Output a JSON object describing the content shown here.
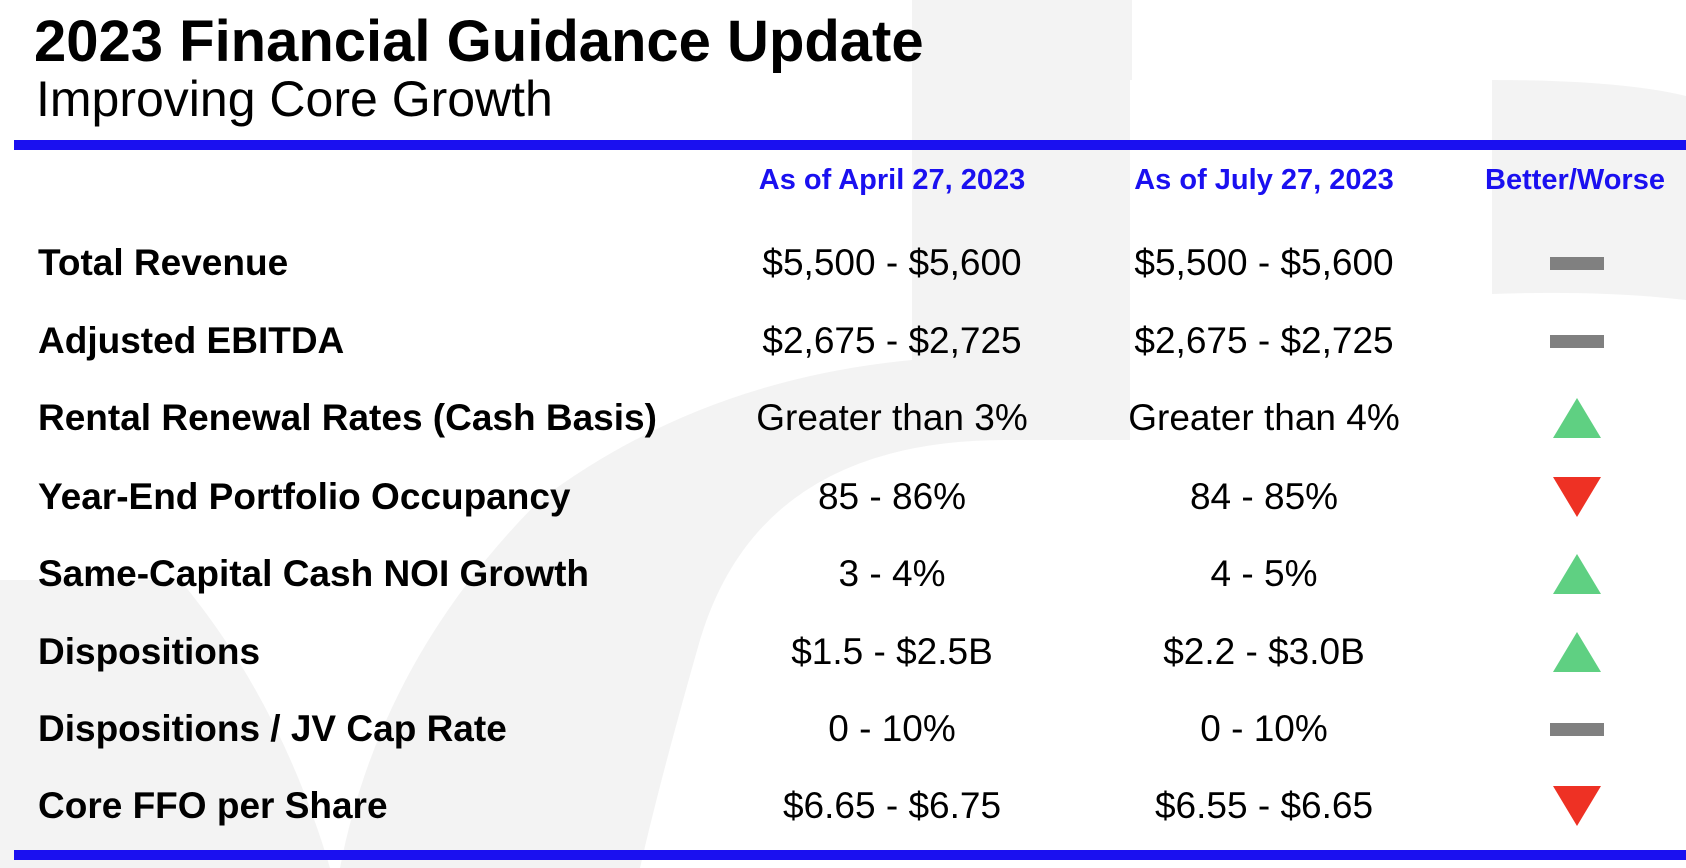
{
  "header": {
    "title": "2023 Financial Guidance Update",
    "subtitle": "Improving Core Growth"
  },
  "columns": {
    "april": "As of April 27, 2023",
    "july": "As of July 27, 2023",
    "change": "Better/Worse"
  },
  "colors": {
    "accent": "#1a10f0",
    "better": "#5fd082",
    "worse": "#ee3124",
    "unchanged": "#808080"
  },
  "rows": [
    {
      "metric": "Total Revenue",
      "april": "$5,500 - $5,600",
      "july": "$5,500 - $5,600",
      "indicator": "unchanged"
    },
    {
      "metric": "Adjusted EBITDA",
      "april": "$2,675 - $2,725",
      "july": "$2,675 - $2,725",
      "indicator": "unchanged"
    },
    {
      "metric": "Rental Renewal Rates (Cash Basis)",
      "april": "Greater than 3%",
      "july": "Greater than 4%",
      "indicator": "better"
    },
    {
      "metric": "Year-End Portfolio Occupancy",
      "april": "85 - 86%",
      "july": "84 - 85%",
      "indicator": "worse"
    },
    {
      "metric": "Same-Capital Cash NOI Growth",
      "april": "3 - 4%",
      "july": "4 - 5%",
      "indicator": "better"
    },
    {
      "metric": "Dispositions",
      "april": "$1.5 - $2.5B",
      "july": "$2.2 - $3.0B",
      "indicator": "better"
    },
    {
      "metric": "Dispositions / JV Cap Rate",
      "april": "0 - 10%",
      "july": "0 - 10%",
      "indicator": "unchanged"
    },
    {
      "metric": "Core FFO per Share",
      "april": "$6.65 - $6.75",
      "july": "$6.55 - $6.65",
      "indicator": "worse"
    }
  ]
}
